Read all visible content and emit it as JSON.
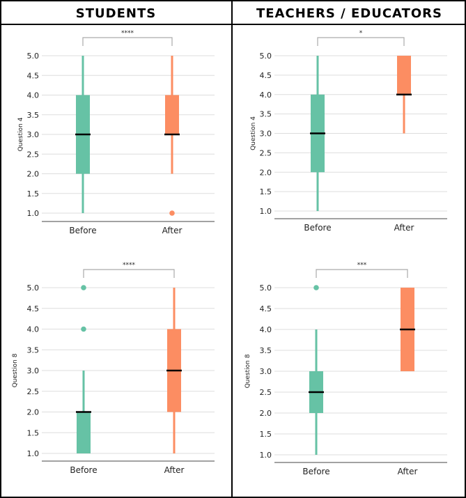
{
  "columns": {
    "left": "STUDENTS",
    "right": "TEACHERS / EDUCATORS"
  },
  "colors": {
    "before": "#66c2a5",
    "after": "#fc8d62",
    "median": "#000000",
    "grid": "#dddddd",
    "bracket": "#aaaaaa"
  },
  "chart_data": [
    {
      "type": "box",
      "group": "STUDENTS",
      "ylabel": "Question 4",
      "ylim": [
        0.85,
        5.15
      ],
      "yticks": [
        "1.0",
        "1.5",
        "2.0",
        "2.5",
        "3.0",
        "3.5",
        "4.0",
        "4.5",
        "5.0"
      ],
      "categories": [
        "Before",
        "After"
      ],
      "significance": "****",
      "boxes": [
        {
          "name": "Before",
          "whisker_low": 1.0,
          "q1": 2.0,
          "median": 3.0,
          "q3": 4.0,
          "whisker_high": 5.0,
          "outliers": []
        },
        {
          "name": "After",
          "whisker_low": 2.0,
          "q1": 3.0,
          "median": 3.0,
          "q3": 4.0,
          "whisker_high": 5.0,
          "outliers": [
            1.0
          ]
        }
      ]
    },
    {
      "type": "box",
      "group": "TEACHERS / EDUCATORS",
      "ylabel": "Question 4",
      "ylim": [
        0.85,
        5.15
      ],
      "yticks": [
        "1.0",
        "1.5",
        "2.0",
        "2.5",
        "3.0",
        "3.5",
        "4.0",
        "4.5",
        "5.0"
      ],
      "categories": [
        "Before",
        "After"
      ],
      "significance": "*",
      "boxes": [
        {
          "name": "Before",
          "whisker_low": 1.0,
          "q1": 2.0,
          "median": 3.0,
          "q3": 4.0,
          "whisker_high": 5.0,
          "outliers": []
        },
        {
          "name": "After",
          "whisker_low": 3.0,
          "q1": 4.0,
          "median": 4.0,
          "q3": 5.0,
          "whisker_high": 5.0,
          "outliers": []
        }
      ]
    },
    {
      "type": "box",
      "group": "STUDENTS",
      "ylabel": "Question 8",
      "ylim": [
        0.85,
        5.15
      ],
      "yticks": [
        "1.0",
        "1.5",
        "2.0",
        "2.5",
        "3.0",
        "3.5",
        "4.0",
        "4.5",
        "5.0"
      ],
      "categories": [
        "Before",
        "After"
      ],
      "significance": "****",
      "boxes": [
        {
          "name": "Before",
          "whisker_low": 1.0,
          "q1": 1.0,
          "median": 2.0,
          "q3": 2.0,
          "whisker_high": 3.0,
          "outliers": [
            4.0,
            5.0
          ]
        },
        {
          "name": "After",
          "whisker_low": 1.0,
          "q1": 2.0,
          "median": 3.0,
          "q3": 4.0,
          "whisker_high": 5.0,
          "outliers": []
        }
      ]
    },
    {
      "type": "box",
      "group": "TEACHERS / EDUCATORS",
      "ylabel": "Question 8",
      "ylim": [
        0.85,
        5.15
      ],
      "yticks": [
        "1.0",
        "1.5",
        "2.0",
        "2.5",
        "3.0",
        "3.5",
        "4.0",
        "4.5",
        "5.0"
      ],
      "categories": [
        "Before",
        "After"
      ],
      "significance": "***",
      "boxes": [
        {
          "name": "Before",
          "whisker_low": 1.0,
          "q1": 2.0,
          "median": 2.5,
          "q3": 3.0,
          "whisker_high": 4.0,
          "outliers": [
            5.0
          ]
        },
        {
          "name": "After",
          "whisker_low": 3.0,
          "q1": 3.0,
          "median": 4.0,
          "q3": 5.0,
          "whisker_high": 5.0,
          "outliers": []
        }
      ]
    }
  ]
}
